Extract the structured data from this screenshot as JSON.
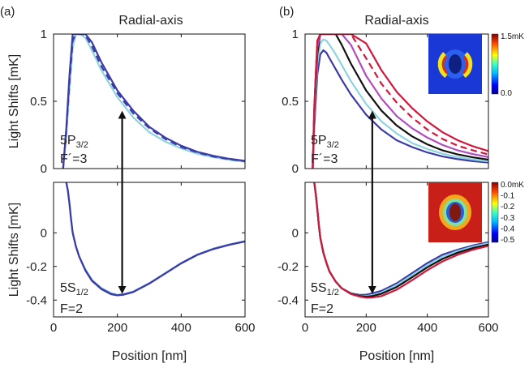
{
  "colors": {
    "dark_blue": "#3b3ba8",
    "light_blue": "#8ed3e0",
    "mid_blue": "#4b8bc8",
    "black": "#111111",
    "magenta": "#b04bc0",
    "red": "#d0183a",
    "arrow": "#111111",
    "frame": "#111111"
  },
  "chart_data": [
    {
      "type": "line",
      "panel_label": "(a)",
      "title": "Radial-axis",
      "xlabel": "Position [nm]",
      "xlim": [
        0,
        600
      ],
      "xticks": [
        "0",
        "200",
        "400",
        "600"
      ],
      "subplots": [
        {
          "position": "top",
          "ylabel": "Light Shifts [mK]",
          "ylim": [
            0,
            1
          ],
          "yticks": [
            "0",
            "0.5",
            "1"
          ],
          "state_label": {
            "line1_main": "5P",
            "line1_sub": "3/2",
            "line2": "F´=3"
          },
          "series": [
            {
              "color": "light_blue",
              "dash": false,
              "x": [
                30,
                40,
                50,
                60,
                70,
                80,
                90,
                100,
                120,
                150,
                200,
                250,
                300,
                350,
                400,
                450,
                500,
                550,
                600
              ],
              "y": [
                0.0,
                0.25,
                0.6,
                0.9,
                1.0,
                1.0,
                0.99,
                0.97,
                0.88,
                0.73,
                0.53,
                0.38,
                0.27,
                0.2,
                0.15,
                0.11,
                0.085,
                0.065,
                0.05
              ]
            },
            {
              "color": "dark_blue",
              "dash": true,
              "x": [
                30,
                40,
                50,
                60,
                70,
                80,
                90,
                100,
                120,
                150,
                200,
                250,
                300,
                350,
                400,
                450,
                500,
                550,
                600
              ],
              "y": [
                0.0,
                0.28,
                0.65,
                0.95,
                1.0,
                1.0,
                1.0,
                0.99,
                0.91,
                0.76,
                0.56,
                0.41,
                0.3,
                0.22,
                0.16,
                0.12,
                0.09,
                0.07,
                0.055
              ]
            },
            {
              "color": "dark_blue",
              "dash": false,
              "x": [
                30,
                40,
                50,
                60,
                70,
                80,
                90,
                100,
                120,
                150,
                200,
                250,
                300,
                350,
                400,
                450,
                500,
                550,
                600
              ],
              "y": [
                0.0,
                0.3,
                0.7,
                1.0,
                1.0,
                1.0,
                1.0,
                1.0,
                0.94,
                0.79,
                0.58,
                0.43,
                0.31,
                0.23,
                0.17,
                0.125,
                0.095,
                0.073,
                0.057
              ]
            }
          ]
        },
        {
          "position": "bottom",
          "ylabel": "Light Shifts [mK]",
          "ylim": [
            -0.5,
            0.3
          ],
          "yticks": [
            "0",
            "-0.2",
            "-0.4"
          ],
          "state_label": {
            "line1_main": "5S",
            "line1_sub": "1/2",
            "line2": "F=2"
          },
          "series": [
            {
              "color": "mid_blue",
              "dash": false,
              "x": [
                40,
                45,
                50,
                55,
                60,
                70,
                80,
                100,
                120,
                150,
                180,
                200,
                220,
                250,
                300,
                350,
                400,
                450,
                500,
                550,
                600
              ],
              "y": [
                0.3,
                0.25,
                0.17,
                0.08,
                0.0,
                -0.08,
                -0.14,
                -0.22,
                -0.28,
                -0.33,
                -0.36,
                -0.37,
                -0.365,
                -0.35,
                -0.3,
                -0.24,
                -0.18,
                -0.13,
                -0.095,
                -0.07,
                -0.05
              ]
            },
            {
              "color": "dark_blue",
              "dash": false,
              "x": [
                40,
                45,
                50,
                55,
                60,
                70,
                80,
                100,
                120,
                150,
                180,
                200,
                220,
                250,
                300,
                350,
                400,
                450,
                500,
                550,
                600
              ],
              "y": [
                0.3,
                0.25,
                0.17,
                0.08,
                0.0,
                -0.08,
                -0.14,
                -0.225,
                -0.285,
                -0.335,
                -0.365,
                -0.372,
                -0.368,
                -0.352,
                -0.302,
                -0.242,
                -0.182,
                -0.132,
                -0.097,
                -0.072,
                -0.052
              ]
            }
          ]
        }
      ],
      "annotation": {
        "type": "double-arrow",
        "x": 215,
        "top_y": 0.4,
        "bottom_y": -0.34
      }
    },
    {
      "type": "line",
      "panel_label": "(b)",
      "title": "Radial-axis",
      "xlabel": "Position [nm]",
      "xlim": [
        0,
        600
      ],
      "xticks": [
        "0",
        "200",
        "400",
        "600"
      ],
      "subplots": [
        {
          "position": "top",
          "ylim": [
            0,
            1
          ],
          "yticks": [
            "0",
            "0.5",
            "1"
          ],
          "state_label": {
            "line1_main": "5P",
            "line1_sub": "3/2",
            "line2": "F´=3"
          },
          "colorbar": {
            "max_label": "1.5mK",
            "min_label": "0.0"
          },
          "series": [
            {
              "color": "dark_blue",
              "dash": false,
              "x": [
                25,
                30,
                40,
                50,
                60,
                70,
                80,
                100,
                120,
                150,
                200,
                250,
                300,
                350,
                400,
                450,
                500,
                550,
                600
              ],
              "y": [
                0.0,
                0.3,
                0.7,
                0.85,
                0.88,
                0.86,
                0.82,
                0.74,
                0.66,
                0.55,
                0.4,
                0.29,
                0.21,
                0.16,
                0.12,
                0.09,
                0.07,
                0.055,
                0.045
              ]
            },
            {
              "color": "light_blue",
              "dash": false,
              "x": [
                25,
                30,
                40,
                50,
                60,
                70,
                80,
                100,
                120,
                150,
                200,
                250,
                300,
                350,
                400,
                450,
                500,
                550,
                600
              ],
              "y": [
                0.0,
                0.35,
                0.78,
                0.93,
                0.96,
                0.95,
                0.92,
                0.85,
                0.77,
                0.65,
                0.48,
                0.35,
                0.26,
                0.19,
                0.145,
                0.11,
                0.085,
                0.067,
                0.053
              ]
            },
            {
              "color": "black",
              "dash": false,
              "x": [
                25,
                30,
                40,
                50,
                60,
                70,
                80,
                100,
                120,
                150,
                200,
                250,
                300,
                350,
                400,
                450,
                500,
                550,
                600
              ],
              "y": [
                0.0,
                0.4,
                0.85,
                1.0,
                1.0,
                1.0,
                1.0,
                1.0,
                0.92,
                0.78,
                0.58,
                0.43,
                0.32,
                0.24,
                0.18,
                0.135,
                0.105,
                0.083,
                0.066
              ]
            },
            {
              "color": "magenta",
              "dash": false,
              "x": [
                25,
                30,
                40,
                50,
                60,
                70,
                80,
                100,
                120,
                150,
                200,
                250,
                300,
                350,
                400,
                450,
                500,
                550,
                600
              ],
              "y": [
                0.0,
                0.42,
                0.9,
                1.0,
                1.0,
                1.0,
                1.0,
                1.0,
                1.0,
                0.92,
                0.69,
                0.52,
                0.39,
                0.3,
                0.23,
                0.175,
                0.135,
                0.107,
                0.085
              ]
            },
            {
              "color": "red",
              "dash": true,
              "x": [
                25,
                30,
                40,
                50,
                60,
                70,
                80,
                100,
                120,
                150,
                200,
                250,
                300,
                350,
                400,
                450,
                500,
                550,
                600
              ],
              "y": [
                0.0,
                0.45,
                0.95,
                1.0,
                1.0,
                1.0,
                1.0,
                1.0,
                1.0,
                1.0,
                0.82,
                0.63,
                0.49,
                0.38,
                0.29,
                0.22,
                0.17,
                0.135,
                0.105
              ]
            },
            {
              "color": "red",
              "dash": false,
              "x": [
                25,
                30,
                40,
                50,
                60,
                70,
                80,
                100,
                120,
                150,
                200,
                250,
                300,
                350,
                400,
                450,
                500,
                550,
                600
              ],
              "y": [
                0.0,
                0.45,
                0.95,
                1.0,
                1.0,
                1.0,
                1.0,
                1.0,
                1.0,
                1.0,
                0.93,
                0.73,
                0.57,
                0.45,
                0.35,
                0.27,
                0.21,
                0.165,
                0.13
              ]
            }
          ]
        },
        {
          "position": "bottom",
          "ylim": [
            -0.5,
            0.3
          ],
          "yticks": [
            "0",
            "-0.2",
            "-0.4"
          ],
          "state_label": {
            "line1_main": "5S",
            "line1_sub": "1/2",
            "line2": "F=2"
          },
          "colorbar": {
            "labels": [
              "0.0mK",
              "-0.1",
              "-0.2",
              "-0.3",
              "-0.4",
              "-0.5"
            ]
          },
          "series": [
            {
              "color": "dark_blue",
              "dash": false,
              "x": [
                30,
                35,
                40,
                45,
                50,
                60,
                70,
                80,
                100,
                120,
                150,
                180,
                200,
                220,
                250,
                300,
                350,
                400,
                450,
                500,
                550,
                600
              ],
              "y": [
                0.3,
                0.23,
                0.14,
                0.05,
                -0.03,
                -0.12,
                -0.18,
                -0.23,
                -0.29,
                -0.33,
                -0.36,
                -0.37,
                -0.368,
                -0.36,
                -0.345,
                -0.3,
                -0.24,
                -0.18,
                -0.13,
                -0.1,
                -0.075,
                -0.055
              ]
            },
            {
              "color": "light_blue",
              "dash": false,
              "x": [
                30,
                35,
                40,
                45,
                50,
                60,
                70,
                80,
                100,
                120,
                150,
                180,
                200,
                220,
                250,
                300,
                350,
                400,
                450,
                500,
                550,
                600
              ],
              "y": [
                0.3,
                0.23,
                0.14,
                0.05,
                -0.03,
                -0.12,
                -0.18,
                -0.23,
                -0.29,
                -0.33,
                -0.362,
                -0.375,
                -0.376,
                -0.37,
                -0.355,
                -0.31,
                -0.252,
                -0.192,
                -0.142,
                -0.108,
                -0.082,
                -0.062
              ]
            },
            {
              "color": "black",
              "dash": false,
              "x": [
                30,
                35,
                40,
                45,
                50,
                60,
                70,
                80,
                100,
                120,
                150,
                180,
                200,
                220,
                250,
                300,
                350,
                400,
                450,
                500,
                550,
                600
              ],
              "y": [
                0.3,
                0.23,
                0.14,
                0.05,
                -0.03,
                -0.12,
                -0.18,
                -0.23,
                -0.29,
                -0.33,
                -0.362,
                -0.376,
                -0.38,
                -0.376,
                -0.362,
                -0.322,
                -0.265,
                -0.205,
                -0.155,
                -0.118,
                -0.09,
                -0.07
              ]
            },
            {
              "color": "red",
              "dash": false,
              "x": [
                30,
                35,
                40,
                45,
                50,
                60,
                70,
                80,
                100,
                120,
                150,
                180,
                200,
                220,
                250,
                300,
                350,
                400,
                450,
                500,
                550,
                600
              ],
              "y": [
                0.3,
                0.23,
                0.14,
                0.05,
                -0.03,
                -0.12,
                -0.18,
                -0.23,
                -0.29,
                -0.33,
                -0.364,
                -0.38,
                -0.386,
                -0.385,
                -0.376,
                -0.338,
                -0.282,
                -0.222,
                -0.17,
                -0.13,
                -0.1,
                -0.078
              ]
            }
          ]
        }
      ],
      "annotation": {
        "type": "double-arrow",
        "x": 220,
        "top_y": 0.4,
        "bottom_y": -0.34
      }
    }
  ]
}
